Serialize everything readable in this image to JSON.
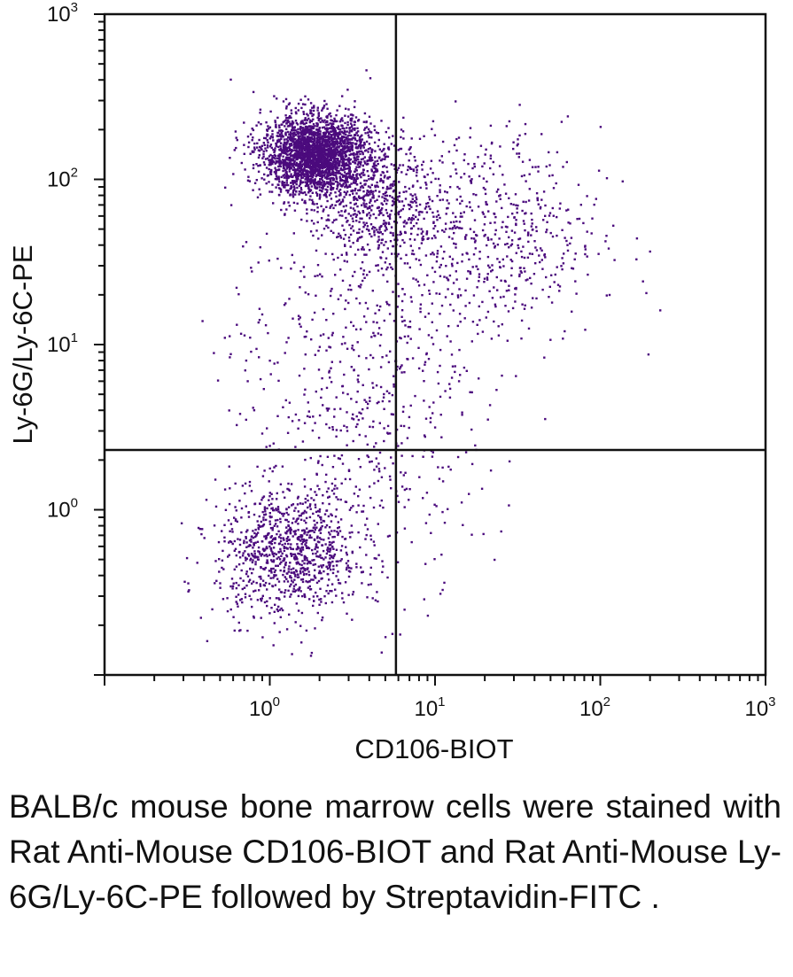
{
  "chart_data": {
    "type": "scatter",
    "xlabel": "CD106-BIOT",
    "ylabel": "Ly-6G/Ly-6C-PE",
    "x_scale": "log",
    "y_scale": "log",
    "xlim": [
      0.1,
      1000
    ],
    "ylim": [
      0.1,
      1000
    ],
    "x_ticks": [
      {
        "base": "10",
        "exp": "0"
      },
      {
        "base": "10",
        "exp": "1"
      },
      {
        "base": "10",
        "exp": "2"
      },
      {
        "base": "10",
        "exp": "3"
      }
    ],
    "y_ticks": [
      {
        "base": "10",
        "exp": "0"
      },
      {
        "base": "10",
        "exp": "1"
      },
      {
        "base": "10",
        "exp": "2"
      },
      {
        "base": "10",
        "exp": "3"
      }
    ],
    "quadrant_gate": {
      "x": 5.8,
      "y": 2.3
    },
    "point_color": "#4b0a7d",
    "populations": [
      {
        "center": [
          1.9,
          140
        ],
        "spread_log": [
          0.16,
          0.12
        ],
        "count": 2600
      },
      {
        "center": [
          4.5,
          75
        ],
        "spread_log": [
          0.17,
          0.18
        ],
        "count": 500
      },
      {
        "center": [
          20,
          45
        ],
        "spread_log": [
          0.35,
          0.33
        ],
        "count": 650
      },
      {
        "center": [
          3.0,
          10
        ],
        "spread_log": [
          0.36,
          0.45
        ],
        "count": 420
      },
      {
        "center": [
          1.3,
          0.55
        ],
        "spread_log": [
          0.22,
          0.2
        ],
        "count": 950
      },
      {
        "center": [
          4.0,
          1.3
        ],
        "spread_log": [
          0.33,
          0.36
        ],
        "count": 220
      }
    ]
  },
  "caption": "BALB/c mouse bone marrow cells were stained with Rat Anti-Mouse CD106-BIOT and Rat Anti-Mouse Ly-6G/Ly-6C-PE followed by Streptavidin-FITC ."
}
